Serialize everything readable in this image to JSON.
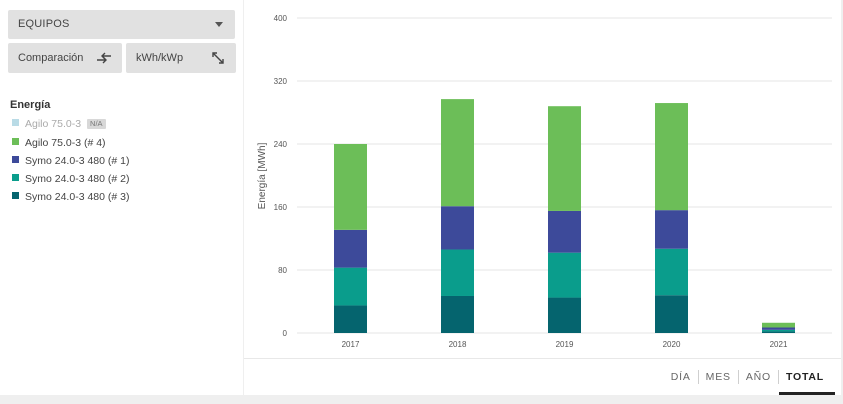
{
  "controls": {
    "device_select": "EQUIPOS",
    "compare_label": "Comparación",
    "unit_label": "kWh/kWp"
  },
  "legend": {
    "title": "Energía",
    "items": [
      {
        "label": "Agilo 75.0-3",
        "color": "#b9dbe6",
        "badge": "N/A",
        "disabled": true
      },
      {
        "label": "Agilo 75.0-3 (# 4)",
        "color": "#6cbe58"
      },
      {
        "label": "Symo 24.0-3 480 (# 1)",
        "color": "#3d4a9a"
      },
      {
        "label": "Symo 24.0-3 480 (# 2)",
        "color": "#0a9d8c"
      },
      {
        "label": "Symo 24.0-3 480 (# 3)",
        "color": "#05646e"
      }
    ]
  },
  "period_tabs": [
    {
      "label": "DÍA",
      "active": false
    },
    {
      "label": "MES",
      "active": false
    },
    {
      "label": "AÑO",
      "active": false
    },
    {
      "label": "TOTAL",
      "active": true
    }
  ],
  "chart_data": {
    "type": "bar",
    "stacked": true,
    "ylabel": "Energía [MWh]",
    "ylim": [
      0,
      400
    ],
    "yticks": [
      0,
      80,
      160,
      240,
      320,
      400
    ],
    "grid": true,
    "categories": [
      "2017",
      "2018",
      "2019",
      "2020",
      "2021"
    ],
    "series": [
      {
        "name": "Symo 24.0-3 480 (# 3)",
        "color": "#05646e",
        "values": [
          35,
          47,
          45,
          48,
          2
        ]
      },
      {
        "name": "Symo 24.0-3 480 (# 2)",
        "color": "#0a9d8c",
        "values": [
          48,
          59,
          57,
          59,
          2
        ]
      },
      {
        "name": "Symo 24.0-3 480 (# 1)",
        "color": "#3d4a9a",
        "values": [
          48,
          55,
          53,
          49,
          3
        ]
      },
      {
        "name": "Agilo 75.0-3 (# 4)",
        "color": "#6cbe58",
        "values": [
          109,
          136,
          133,
          136,
          6
        ]
      }
    ]
  }
}
